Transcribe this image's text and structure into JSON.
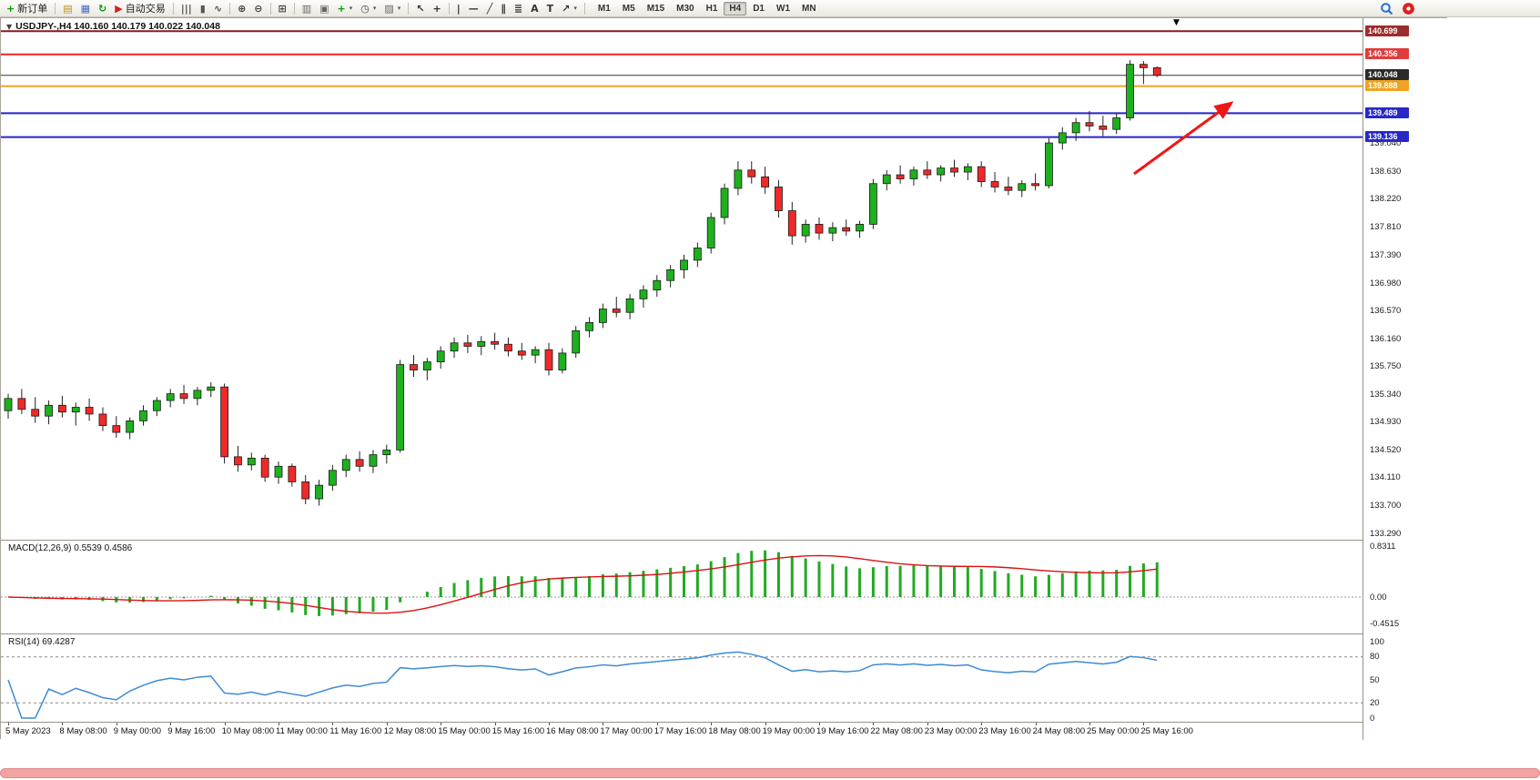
{
  "toolbar": {
    "items": [
      {
        "type": "button",
        "name": "new-order-button",
        "icon": "new-order-icon",
        "glyph": "+",
        "glyph_color": "#0a9a0a",
        "label": "新订单"
      },
      {
        "type": "sep"
      },
      {
        "type": "icon",
        "name": "charts-icon",
        "glyph": "▤",
        "glyph_color": "#c09020"
      },
      {
        "type": "icon",
        "name": "profiles-icon",
        "glyph": "▦",
        "glyph_color": "#4568c8"
      },
      {
        "type": "icon",
        "name": "refresh-icon",
        "glyph": "↻",
        "glyph_color": "#0a9a0a"
      },
      {
        "type": "button",
        "name": "autotrading-button",
        "icon": "autotrading-icon",
        "glyph": "▶",
        "glyph_color": "#cf2020",
        "label": "自动交易"
      },
      {
        "type": "sep"
      },
      {
        "type": "icon",
        "name": "bar-chart-icon",
        "glyph": "|||",
        "glyph_color": "#555555"
      },
      {
        "type": "icon",
        "name": "candlestick-chart-icon",
        "glyph": "▮",
        "glyph_color": "#555555"
      },
      {
        "type": "icon",
        "name": "line-chart-icon",
        "glyph": "∿",
        "glyph_color": "#555555"
      },
      {
        "type": "sep"
      },
      {
        "type": "icon",
        "name": "zoom-in-icon",
        "glyph": "⊕",
        "glyph_color": "#444444"
      },
      {
        "type": "icon",
        "name": "zoom-out-icon",
        "glyph": "⊖",
        "glyph_color": "#444444"
      },
      {
        "type": "sep"
      },
      {
        "type": "icon",
        "name": "tile-windows-icon",
        "glyph": "⊞",
        "glyph_color": "#444444"
      },
      {
        "type": "sep"
      },
      {
        "type": "icon",
        "name": "indicators-icon",
        "glyph": "▥",
        "glyph_color": "#666666"
      },
      {
        "type": "icon",
        "name": "data-window-icon",
        "glyph": "▣",
        "glyph_color": "#666666"
      },
      {
        "type": "icon",
        "name": "add-indicator-icon",
        "glyph": "+",
        "glyph_color": "#0a9a0a",
        "dropdown": true
      },
      {
        "type": "icon",
        "name": "periods-icon",
        "glyph": "◷",
        "glyph_color": "#444444",
        "dropdown": true
      },
      {
        "type": "icon",
        "name": "templates-icon",
        "glyph": "▨",
        "glyph_color": "#666666",
        "dropdown": true
      },
      {
        "type": "sep"
      },
      {
        "type": "icon",
        "name": "cursor-icon",
        "glyph": "↖",
        "glyph_color": "#333333"
      },
      {
        "type": "icon",
        "name": "crosshair-icon",
        "glyph": "+",
        "glyph_color": "#333333"
      },
      {
        "type": "sep"
      },
      {
        "type": "icon",
        "name": "vertical-line-icon",
        "glyph": "|",
        "glyph_color": "#333333"
      },
      {
        "type": "icon",
        "name": "horizontal-line-icon",
        "glyph": "—",
        "glyph_color": "#333333"
      },
      {
        "type": "icon",
        "name": "trendline-icon",
        "glyph": "╱",
        "glyph_color": "#333333"
      },
      {
        "type": "icon",
        "name": "channel-icon",
        "glyph": "∥",
        "glyph_color": "#333333"
      },
      {
        "type": "icon",
        "name": "fibonacci-icon",
        "glyph": "≣",
        "glyph_color": "#333333"
      },
      {
        "type": "icon",
        "name": "text-icon",
        "glyph": "A",
        "glyph_color": "#333333"
      },
      {
        "type": "icon",
        "name": "label-icon",
        "glyph": "T",
        "glyph_color": "#333333"
      },
      {
        "type": "icon",
        "name": "arrows-icon",
        "glyph": "↗",
        "glyph_color": "#333333",
        "dropdown": true
      },
      {
        "type": "sep"
      }
    ],
    "timeframes": {
      "items": [
        "M1",
        "M5",
        "M15",
        "M30",
        "H1",
        "H4",
        "D1",
        "W1",
        "MN"
      ],
      "active": "H4"
    },
    "right_icons": [
      {
        "name": "search-icon"
      },
      {
        "name": "alert-icon"
      }
    ]
  },
  "chart": {
    "title": "USDJPY-,H4 140.160 140.179 140.022 140.048"
  },
  "chart_data": {
    "type": "candlestick",
    "symbol": "USDJPY-",
    "timeframe": "H4",
    "colors": {
      "up": "#1db11d",
      "down": "#ef2929",
      "wick": "#222222",
      "outline": "#1a1a1a"
    },
    "price_axis": {
      "min": 133.25,
      "max": 140.85,
      "ticks": [
        "139.040",
        "138.630",
        "138.220",
        "137.810",
        "137.390",
        "136.980",
        "136.570",
        "136.160",
        "135.750",
        "135.340",
        "134.930",
        "134.520",
        "134.110",
        "133.700",
        "133.290"
      ]
    },
    "hlines": [
      {
        "name": "resistance-line-upper",
        "price": 140.699,
        "color": "#8b1a1a",
        "width": 2,
        "label": "140.699",
        "label_bg": "#9c2b2b"
      },
      {
        "name": "resistance-line-lower",
        "price": 140.356,
        "color": "#ee2222",
        "width": 2,
        "label": "140.356",
        "label_bg": "#e03c3c"
      },
      {
        "name": "orange-level-line",
        "price": 139.888,
        "color": "#f5a31a",
        "width": 2,
        "label": "139.888",
        "label_bg": "#efa320"
      },
      {
        "name": "support-line-upper",
        "price": 139.489,
        "color": "#2424cc",
        "width": 2,
        "label": "139.489",
        "label_bg": "#2828c8"
      },
      {
        "name": "support-line-lower",
        "price": 139.136,
        "color": "#2424cc",
        "width": 2,
        "label": "139.136",
        "label_bg": "#2828c8"
      },
      {
        "name": "bid-price-line",
        "price": 140.048,
        "color": "#333333",
        "width": 1,
        "label": "140.048",
        "label_bg": "#2b2b2b"
      }
    ],
    "arrow_annotation": {
      "from": [
        1245,
        171
      ],
      "to": [
        1352,
        93
      ],
      "color": "#f01616"
    },
    "indicators": {
      "macd": {
        "label": "MACD(12,26,9) 0.5539 0.4586",
        "fast": 12,
        "slow": 26,
        "signal": 9,
        "color": "#22aa22",
        "signal_color": "#dd1111",
        "axis_ticks": [
          "0.8311",
          "0.00",
          "-0.4515"
        ]
      },
      "rsi": {
        "label": "RSI(14) 69.4287",
        "period": 14,
        "color": "#3d8bd4",
        "levels": [
          80,
          20
        ],
        "axis_ticks": [
          "100",
          "80",
          "50",
          "20",
          "0"
        ]
      }
    },
    "time_labels": [
      "5 May 2023",
      "8 May 08:00",
      "9 May 00:00",
      "9 May 16:00",
      "10 May 08:00",
      "11 May 00:00",
      "11 May 16:00",
      "12 May 08:00",
      "15 May 00:00",
      "15 May 16:00",
      "16 May 08:00",
      "17 May 00:00",
      "17 May 16:00",
      "18 May 08:00",
      "19 May 00:00",
      "19 May 16:00",
      "22 May 08:00",
      "23 May 00:00",
      "23 May 16:00",
      "24 May 08:00",
      "25 May 00:00",
      "25 May 16:00"
    ],
    "ohlc": [
      [
        135.1,
        135.35,
        134.98,
        135.28
      ],
      [
        135.28,
        135.42,
        135.05,
        135.12
      ],
      [
        135.12,
        135.3,
        134.92,
        135.02
      ],
      [
        135.02,
        135.25,
        134.9,
        135.18
      ],
      [
        135.18,
        135.32,
        135.0,
        135.08
      ],
      [
        135.08,
        135.22,
        134.88,
        135.15
      ],
      [
        135.15,
        135.28,
        134.95,
        135.05
      ],
      [
        135.05,
        135.15,
        134.8,
        134.88
      ],
      [
        134.88,
        135.02,
        134.7,
        134.78
      ],
      [
        134.78,
        135.0,
        134.68,
        134.95
      ],
      [
        134.95,
        135.18,
        134.88,
        135.1
      ],
      [
        135.1,
        135.3,
        135.02,
        135.25
      ],
      [
        135.25,
        135.42,
        135.15,
        135.35
      ],
      [
        135.35,
        135.48,
        135.2,
        135.28
      ],
      [
        135.28,
        135.45,
        135.18,
        135.4
      ],
      [
        135.4,
        135.52,
        135.3,
        135.45
      ],
      [
        135.45,
        135.5,
        134.32,
        134.42
      ],
      [
        134.42,
        134.58,
        134.2,
        134.3
      ],
      [
        134.3,
        134.48,
        134.22,
        134.4
      ],
      [
        134.4,
        134.45,
        134.05,
        134.12
      ],
      [
        134.12,
        134.35,
        134.02,
        134.28
      ],
      [
        134.28,
        134.32,
        133.98,
        134.05
      ],
      [
        134.05,
        134.15,
        133.72,
        133.8
      ],
      [
        133.8,
        134.08,
        133.7,
        134.0
      ],
      [
        134.0,
        134.3,
        133.92,
        134.22
      ],
      [
        134.22,
        134.45,
        134.12,
        134.38
      ],
      [
        134.38,
        134.5,
        134.2,
        134.28
      ],
      [
        134.28,
        134.52,
        134.18,
        134.45
      ],
      [
        134.45,
        134.6,
        134.32,
        134.52
      ],
      [
        134.52,
        135.85,
        134.48,
        135.78
      ],
      [
        135.78,
        135.92,
        135.6,
        135.7
      ],
      [
        135.7,
        135.88,
        135.55,
        135.82
      ],
      [
        135.82,
        136.05,
        135.72,
        135.98
      ],
      [
        135.98,
        136.18,
        135.88,
        136.1
      ],
      [
        136.1,
        136.22,
        135.95,
        136.05
      ],
      [
        136.05,
        136.2,
        135.92,
        136.12
      ],
      [
        136.12,
        136.25,
        136.0,
        136.08
      ],
      [
        136.08,
        136.18,
        135.9,
        135.98
      ],
      [
        135.98,
        136.1,
        135.85,
        135.92
      ],
      [
        135.92,
        136.05,
        135.8,
        136.0
      ],
      [
        136.0,
        136.1,
        135.62,
        135.7
      ],
      [
        135.7,
        136.02,
        135.65,
        135.95
      ],
      [
        135.95,
        136.35,
        135.88,
        136.28
      ],
      [
        136.28,
        136.48,
        136.18,
        136.4
      ],
      [
        136.4,
        136.68,
        136.32,
        136.6
      ],
      [
        136.6,
        136.78,
        136.48,
        136.55
      ],
      [
        136.55,
        136.82,
        136.45,
        136.75
      ],
      [
        136.75,
        136.95,
        136.62,
        136.88
      ],
      [
        136.88,
        137.1,
        136.78,
        137.02
      ],
      [
        137.02,
        137.25,
        136.92,
        137.18
      ],
      [
        137.18,
        137.4,
        137.05,
        137.32
      ],
      [
        137.32,
        137.58,
        137.22,
        137.5
      ],
      [
        137.5,
        138.02,
        137.42,
        137.95
      ],
      [
        137.95,
        138.45,
        137.85,
        138.38
      ],
      [
        138.38,
        138.78,
        138.28,
        138.65
      ],
      [
        138.65,
        138.78,
        138.45,
        138.55
      ],
      [
        138.55,
        138.7,
        138.3,
        138.4
      ],
      [
        138.4,
        138.5,
        137.95,
        138.05
      ],
      [
        138.05,
        138.18,
        137.55,
        137.68
      ],
      [
        137.68,
        137.92,
        137.58,
        137.85
      ],
      [
        137.85,
        137.95,
        137.62,
        137.72
      ],
      [
        137.72,
        137.88,
        137.6,
        137.8
      ],
      [
        137.8,
        137.92,
        137.68,
        137.75
      ],
      [
        137.75,
        137.9,
        137.65,
        137.85
      ],
      [
        137.85,
        138.52,
        137.78,
        138.45
      ],
      [
        138.45,
        138.65,
        138.35,
        138.58
      ],
      [
        138.58,
        138.72,
        138.45,
        138.52
      ],
      [
        138.52,
        138.7,
        138.42,
        138.65
      ],
      [
        138.65,
        138.78,
        138.52,
        138.58
      ],
      [
        138.58,
        138.72,
        138.48,
        138.68
      ],
      [
        138.68,
        138.8,
        138.55,
        138.62
      ],
      [
        138.62,
        138.75,
        138.5,
        138.7
      ],
      [
        138.7,
        138.78,
        138.4,
        138.48
      ],
      [
        138.48,
        138.62,
        138.32,
        138.4
      ],
      [
        138.4,
        138.55,
        138.28,
        138.35
      ],
      [
        138.35,
        138.5,
        138.25,
        138.45
      ],
      [
        138.45,
        138.6,
        138.35,
        138.42
      ],
      [
        138.42,
        139.12,
        138.38,
        139.05
      ],
      [
        139.05,
        139.28,
        138.95,
        139.2
      ],
      [
        139.2,
        139.42,
        139.08,
        139.35
      ],
      [
        139.35,
        139.52,
        139.22,
        139.3
      ],
      [
        139.3,
        139.45,
        139.15,
        139.25
      ],
      [
        139.25,
        139.48,
        139.18,
        139.42
      ],
      [
        139.42,
        140.27,
        139.38,
        140.21
      ],
      [
        140.21,
        140.26,
        139.92,
        140.16
      ],
      [
        140.16,
        140.179,
        140.022,
        140.048
      ]
    ]
  }
}
